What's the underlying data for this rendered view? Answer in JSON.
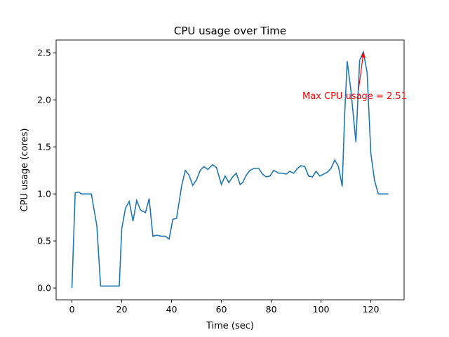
{
  "chart_data": {
    "type": "line",
    "title": "CPU usage over Time",
    "xlabel": "Time (sec)",
    "ylabel": "CPU usage (cores)",
    "color": "#1f77b4",
    "x": [
      0,
      1.3,
      2.6,
      3.9,
      5.2,
      6.5,
      7.8,
      10,
      11.5,
      13,
      15,
      17,
      19,
      20,
      21.5,
      23,
      24.5,
      26,
      27.5,
      29.5,
      31,
      32.5,
      34,
      36,
      37.5,
      39,
      40.5,
      42,
      44,
      45.5,
      47,
      48.5,
      50,
      51.5,
      53,
      54.5,
      56.5,
      58,
      60,
      61.5,
      63,
      64.5,
      66,
      67.5,
      68.5,
      70,
      71.5,
      73,
      75,
      76.5,
      78,
      79.5,
      81,
      83,
      84.5,
      86,
      87.5,
      89,
      90.5,
      92,
      93.5,
      95,
      96.5,
      98,
      99.5,
      101,
      102.5,
      104,
      105.5,
      107,
      108.5,
      109.5,
      110.5,
      112,
      114,
      115.5,
      117,
      118.5,
      120,
      121.5,
      123,
      125,
      127
    ],
    "values": [
      0,
      1.01,
      1.02,
      1.0,
      1.0,
      1.0,
      1.0,
      0.66,
      0.02,
      0.02,
      0.02,
      0.02,
      0.02,
      0.63,
      0.85,
      0.92,
      0.71,
      0.93,
      0.83,
      0.8,
      0.95,
      0.55,
      0.56,
      0.55,
      0.55,
      0.52,
      0.73,
      0.74,
      1.08,
      1.25,
      1.2,
      1.09,
      1.15,
      1.25,
      1.29,
      1.26,
      1.31,
      1.28,
      1.1,
      1.19,
      1.12,
      1.18,
      1.22,
      1.1,
      1.12,
      1.2,
      1.25,
      1.27,
      1.27,
      1.21,
      1.18,
      1.19,
      1.25,
      1.22,
      1.22,
      1.21,
      1.24,
      1.22,
      1.27,
      1.3,
      1.29,
      1.19,
      1.18,
      1.24,
      1.19,
      1.21,
      1.23,
      1.27,
      1.36,
      1.29,
      1.08,
      1.85,
      2.41,
      2.1,
      1.55,
      2.42,
      2.51,
      2.29,
      1.43,
      1.14,
      1.0,
      1.0,
      1.0
    ],
    "xlim": [
      -6.35,
      133.35
    ],
    "xticks": [
      0,
      20,
      40,
      60,
      80,
      100,
      120
    ],
    "ylim": [
      -0.126,
      2.636
    ],
    "yticks": [
      {
        "value": 0,
        "label": "0.0"
      },
      {
        "value": 0.5,
        "label": "0.5"
      },
      {
        "value": 1,
        "label": "1.0"
      },
      {
        "value": 1.5,
        "label": "1.5"
      },
      {
        "value": 2,
        "label": "2.0"
      },
      {
        "value": 2.5,
        "label": "2.5"
      }
    ],
    "annotation": {
      "text": "Max CPU usage = 2.51",
      "x": 117,
      "y": 2.51,
      "color": "red"
    }
  }
}
